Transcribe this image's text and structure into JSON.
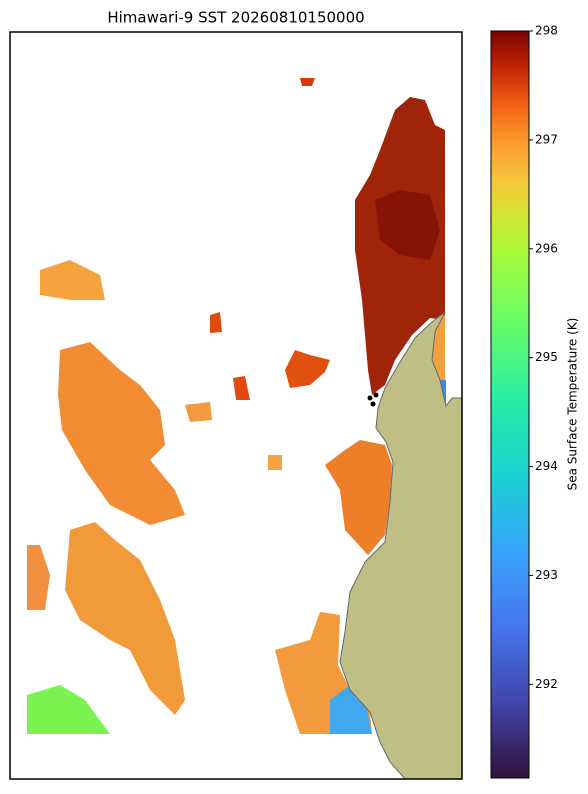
{
  "title": "Himawari-9 SST 20260810150000",
  "colorbar": {
    "label": "Sea Surface Temperature (K)",
    "range": [
      291.14,
      298.0
    ],
    "ticks": [
      292,
      293,
      294,
      295,
      296,
      297,
      298
    ]
  }
}
